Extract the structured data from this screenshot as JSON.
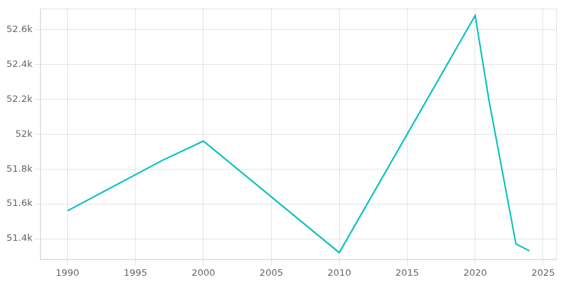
{
  "chart_data": {
    "type": "line",
    "x": [
      1990,
      1997,
      2000,
      2010,
      2020,
      2021,
      2023,
      2024
    ],
    "values": [
      51560,
      51850,
      51960,
      51320,
      52680,
      52200,
      51370,
      51330
    ],
    "color": "#00BFBF",
    "xlim": [
      1988,
      2026
    ],
    "ylim": [
      51280,
      52720
    ],
    "xticks": [
      1990,
      1995,
      2000,
      2005,
      2010,
      2015,
      2020,
      2025
    ],
    "yticks": [
      {
        "value": 51400,
        "label": "51.4k"
      },
      {
        "value": 51600,
        "label": "51.6k"
      },
      {
        "value": 51800,
        "label": "51.8k"
      },
      {
        "value": 52000,
        "label": "52k"
      },
      {
        "value": 52200,
        "label": "52.2k"
      },
      {
        "value": 52400,
        "label": "52.4k"
      },
      {
        "value": 52600,
        "label": "52.6k"
      }
    ],
    "grid": true
  }
}
